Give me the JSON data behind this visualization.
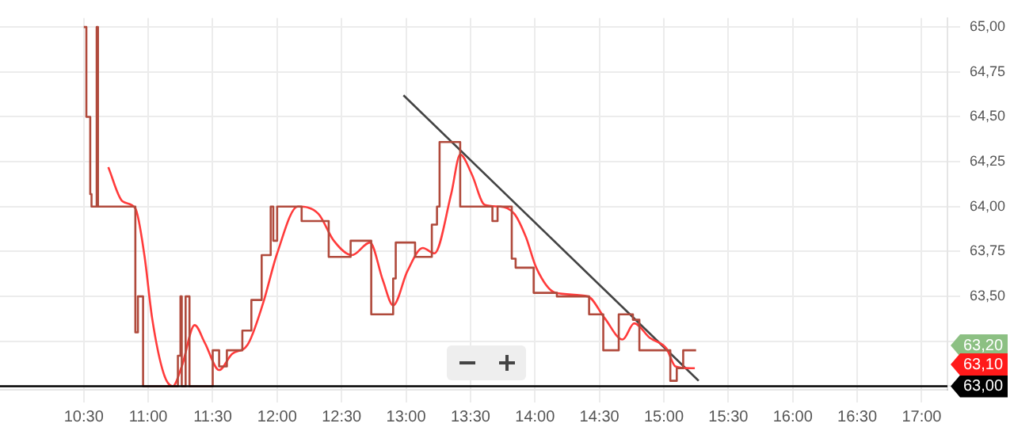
{
  "chart_data": {
    "type": "step",
    "series": [
      {
        "color": "#b04a3c",
        "x": [
          10.5,
          10.52,
          10.55,
          10.56,
          10.6,
          10.61,
          10.9,
          10.92,
          10.96,
          11.23,
          11.25,
          11.26,
          11.29,
          11.32,
          11.5,
          11.55,
          11.61,
          11.73,
          11.8,
          11.88,
          11.95,
          11.97,
          12.0,
          12.19,
          12.4,
          12.57,
          12.73,
          12.9,
          12.92,
          13.07,
          13.2,
          13.24,
          13.26,
          13.42,
          13.67,
          13.71,
          13.82,
          13.85,
          13.99,
          14.17,
          14.42,
          14.53,
          14.65,
          14.76,
          14.81,
          15.05,
          15.1,
          15.15,
          15.25
        ],
        "values": [
          65.0,
          64.5,
          64.07,
          64.0,
          65.0,
          64.0,
          63.3,
          63.5,
          63.0,
          63.17,
          63.5,
          63.0,
          63.5,
          63.0,
          63.2,
          63.11,
          63.2,
          63.31,
          63.48,
          63.73,
          64.0,
          63.81,
          64.0,
          63.92,
          63.72,
          63.81,
          63.4,
          63.6,
          63.8,
          63.72,
          63.9,
          64.0,
          64.36,
          64.0,
          63.92,
          64.0,
          63.71,
          63.66,
          63.52,
          63.5,
          63.4,
          63.2,
          63.4,
          63.37,
          63.2,
          63.03,
          63.1,
          63.2,
          63.2
        ]
      },
      {
        "type": "line",
        "color": "#ff3b3b",
        "x": [
          10.69,
          10.8,
          10.9,
          10.97,
          11.03,
          11.12,
          11.19,
          11.26,
          11.36,
          11.44,
          11.55,
          11.65,
          11.77,
          11.89,
          12.0,
          12.16,
          12.32,
          12.44,
          12.58,
          12.72,
          12.82,
          12.9,
          13.01,
          13.13,
          13.22,
          13.35,
          13.42,
          13.51,
          13.61,
          13.73,
          13.84,
          13.93,
          14.01,
          14.16,
          14.41,
          14.54,
          14.68,
          14.77,
          14.89,
          15.02,
          15.09,
          15.21,
          15.24
        ],
        "values": [
          64.22,
          64.03,
          63.99,
          63.73,
          63.38,
          63.07,
          63.0,
          63.11,
          63.34,
          63.24,
          63.09,
          63.18,
          63.23,
          63.46,
          63.74,
          64.0,
          63.96,
          63.81,
          63.73,
          63.8,
          63.59,
          63.45,
          63.64,
          63.77,
          63.74,
          64.07,
          64.29,
          64.18,
          64.01,
          64.0,
          63.96,
          63.83,
          63.66,
          63.52,
          63.5,
          63.38,
          63.26,
          63.35,
          63.27,
          63.21,
          63.11,
          63.1,
          63.1
        ]
      },
      {
        "type": "line",
        "color": "#444444",
        "x": [
          12.98,
          15.27
        ],
        "values": [
          64.62,
          63.03
        ]
      }
    ],
    "xlim": [
      9.85,
      17.2
    ],
    "xticks": [
      {
        "value": 10.5,
        "label": "10:30"
      },
      {
        "value": 11,
        "label": "11:00"
      },
      {
        "value": 11.5,
        "label": "11:30"
      },
      {
        "value": 12,
        "label": "12:00"
      },
      {
        "value": 12.5,
        "label": "12:30"
      },
      {
        "value": 13,
        "label": "13:00"
      },
      {
        "value": 13.5,
        "label": "13:30"
      },
      {
        "value": 14,
        "label": "14:00"
      },
      {
        "value": 14.5,
        "label": "14:30"
      },
      {
        "value": 15,
        "label": "15:00"
      },
      {
        "value": 15.5,
        "label": "15:30"
      },
      {
        "value": 16,
        "label": "16:00"
      },
      {
        "value": 16.5,
        "label": "16:30"
      },
      {
        "value": 17,
        "label": "17:00"
      }
    ],
    "ylim": [
      62.98,
      65.05
    ],
    "yticks": [
      {
        "value": 63,
        "label": null
      },
      {
        "value": 63.25,
        "label": null
      },
      {
        "value": 63.5,
        "label": "63,50"
      },
      {
        "value": 63.75,
        "label": "63,75"
      },
      {
        "value": 64,
        "label": "64,00"
      },
      {
        "value": 64.25,
        "label": "64,25"
      },
      {
        "value": 64.5,
        "label": "64,50"
      },
      {
        "value": 64.75,
        "label": "64,75"
      },
      {
        "value": 65,
        "label": "65,00"
      }
    ],
    "ref_lines": [
      {
        "axis": "y",
        "value": 63.0,
        "label": "63,00",
        "color": "#000000"
      }
    ],
    "annotations": [
      "63,20",
      "63,10"
    ],
    "grid": true,
    "legend": false,
    "marker": "none"
  }
}
